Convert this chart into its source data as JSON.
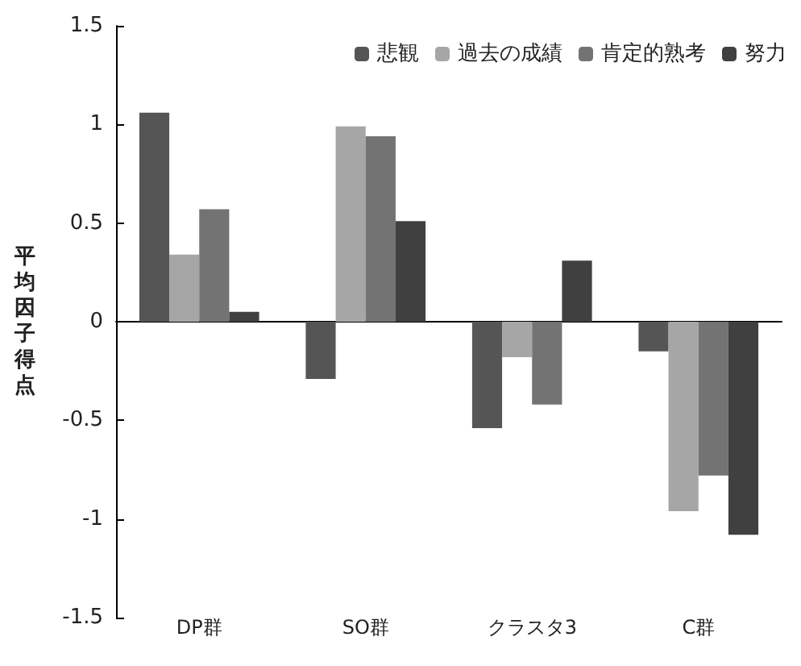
{
  "chart_data": {
    "type": "bar",
    "ylabel": "平均因子得点",
    "categories": [
      "DP群",
      "SO群",
      "クラスタ3",
      "C群"
    ],
    "series": [
      {
        "name": "悲観",
        "color": "#555555",
        "values": [
          1.06,
          -0.29,
          -0.54,
          -0.15
        ]
      },
      {
        "name": "過去の成績",
        "color": "#a6a6a6",
        "values": [
          0.34,
          0.99,
          -0.18,
          -0.96
        ]
      },
      {
        "name": "肯定的熟考",
        "color": "#737373",
        "values": [
          0.57,
          0.94,
          -0.42,
          -0.78
        ]
      },
      {
        "name": "努力",
        "color": "#404040",
        "values": [
          0.05,
          0.51,
          0.31,
          -1.08
        ]
      }
    ],
    "ylim": [
      -1.5,
      1.5
    ],
    "yticks": [
      -1.5,
      -1,
      -0.5,
      0,
      0.5,
      1,
      1.5
    ],
    "legend": "top right"
  }
}
